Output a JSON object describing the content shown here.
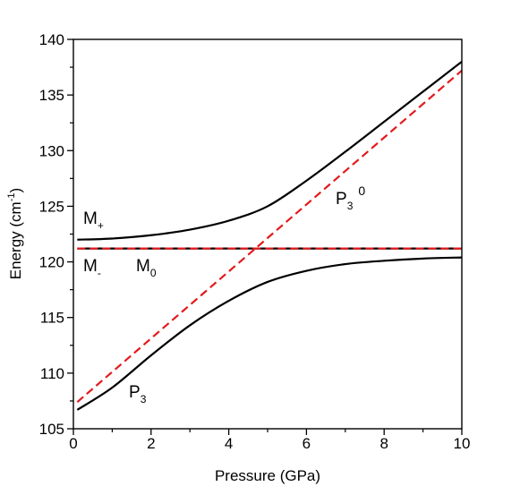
{
  "chart_data": {
    "type": "line",
    "xlabel": "Pressure (GPa)",
    "ylabel": {
      "text": "Energy (cm",
      "sup": "-1",
      "tail": ")"
    },
    "xlim": [
      0,
      10
    ],
    "xticks": [
      0,
      2,
      4,
      6,
      8,
      10
    ],
    "xminor": [
      1,
      3,
      5,
      7,
      9
    ],
    "ylim": [
      105,
      140
    ],
    "yticks": [
      105,
      110,
      115,
      120,
      125,
      130,
      135,
      140
    ],
    "yminor": [
      107.5,
      112.5,
      117.5,
      122.5,
      127.5,
      132.5,
      137.5
    ],
    "series": [
      {
        "color": "#000000",
        "dashed": false,
        "x": [
          0.1,
          1,
          2,
          3,
          4,
          5,
          6,
          7,
          8,
          9,
          10
        ],
        "values": [
          122.0,
          122.1,
          122.4,
          122.9,
          123.7,
          125.0,
          127.3,
          129.9,
          132.6,
          135.3,
          138.0
        ]
      },
      {
        "color": "#000000",
        "dashed": false,
        "x": [
          0.1,
          1,
          2,
          3,
          4,
          5,
          6,
          7,
          8,
          9,
          10
        ],
        "values": [
          106.7,
          108.7,
          111.6,
          114.3,
          116.5,
          118.2,
          119.2,
          119.8,
          120.1,
          120.3,
          120.4
        ]
      },
      {
        "color": "#000000",
        "dashed": false,
        "x": [
          0.1,
          10
        ],
        "values": [
          121.2,
          121.2
        ]
      },
      {
        "color": "#e31a1c",
        "dashed": true,
        "x": [
          0.1,
          10
        ],
        "values": [
          121.2,
          121.2
        ]
      },
      {
        "color": "#e31a1c",
        "dashed": true,
        "x": [
          0.1,
          10
        ],
        "values": [
          107.4,
          137.2
        ]
      }
    ],
    "annotations": [
      {
        "text": "M",
        "sub": "+",
        "color": "#000000"
      },
      {
        "text": "M",
        "sub": "-",
        "color": "#000000"
      },
      {
        "text": "M",
        "sub": "0",
        "color": "#e31a1c"
      },
      {
        "text": "P",
        "sub": "3",
        "color": "#000000"
      },
      {
        "text": "P",
        "sub": "3",
        "sup": "0",
        "color": "#e31a1c"
      }
    ]
  }
}
